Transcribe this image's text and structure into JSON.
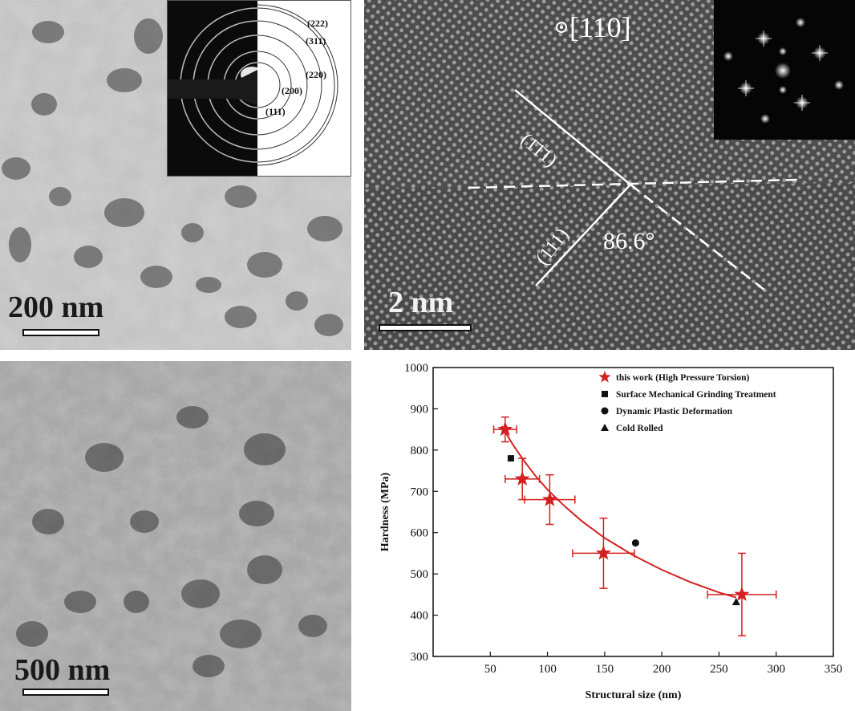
{
  "panel_a": {
    "scale_text": "200 nm",
    "ring_labels": [
      "(222)",
      "(311)",
      "(220)",
      "(200)",
      "(111)"
    ]
  },
  "panel_b": {
    "zone_axis": "[110]",
    "plane_upper": "(1̄1̄1)",
    "plane_lower": "(111)",
    "angle": "86.6°",
    "scale_text": "2 nm"
  },
  "panel_c": {
    "scale_text": "500 nm"
  },
  "chart_data": {
    "type": "scatter",
    "xlabel": "Structural size (nm)",
    "ylabel": "Hardness (MPa)",
    "xlim": [
      0,
      350
    ],
    "ylim": [
      300,
      1000
    ],
    "xticks": [
      50,
      100,
      150,
      200,
      250,
      300,
      350
    ],
    "yticks": [
      300,
      400,
      500,
      600,
      700,
      800,
      900,
      1000
    ],
    "legend_position": "top-right",
    "series": [
      {
        "name": "this work (High Pressure Torsion)",
        "marker": "star",
        "color": "#d42020",
        "points": [
          {
            "x": 63,
            "y": 850,
            "xerr": 10,
            "yerr": 30
          },
          {
            "x": 78,
            "y": 730,
            "xerr": 15,
            "yerr": 50
          },
          {
            "x": 102,
            "y": 680,
            "xerr": 22,
            "yerr": 60
          },
          {
            "x": 149,
            "y": 550,
            "xerr": 27,
            "yerr": 85
          },
          {
            "x": 270,
            "y": 450,
            "xerr": 30,
            "yerr": 100
          }
        ]
      },
      {
        "name": "Surface Mechanical Grinding Treatment",
        "marker": "square",
        "color": "#111111",
        "points": [
          {
            "x": 68,
            "y": 780
          }
        ]
      },
      {
        "name": "Dynamic Plastic Deformation",
        "marker": "circle",
        "color": "#111111",
        "points": [
          {
            "x": 177,
            "y": 575
          }
        ]
      },
      {
        "name": "Cold Rolled",
        "marker": "triangle",
        "color": "#111111",
        "points": [
          {
            "x": 265,
            "y": 432
          }
        ]
      }
    ],
    "fit_curve": {
      "color": "#d42020",
      "points": [
        [
          60,
          858
        ],
        [
          70,
          812
        ],
        [
          80,
          772
        ],
        [
          90,
          736
        ],
        [
          100,
          704
        ],
        [
          115,
          664
        ],
        [
          130,
          628
        ],
        [
          150,
          587
        ],
        [
          175,
          545
        ],
        [
          200,
          510
        ],
        [
          225,
          480
        ],
        [
          250,
          455
        ],
        [
          265,
          443
        ]
      ]
    }
  }
}
